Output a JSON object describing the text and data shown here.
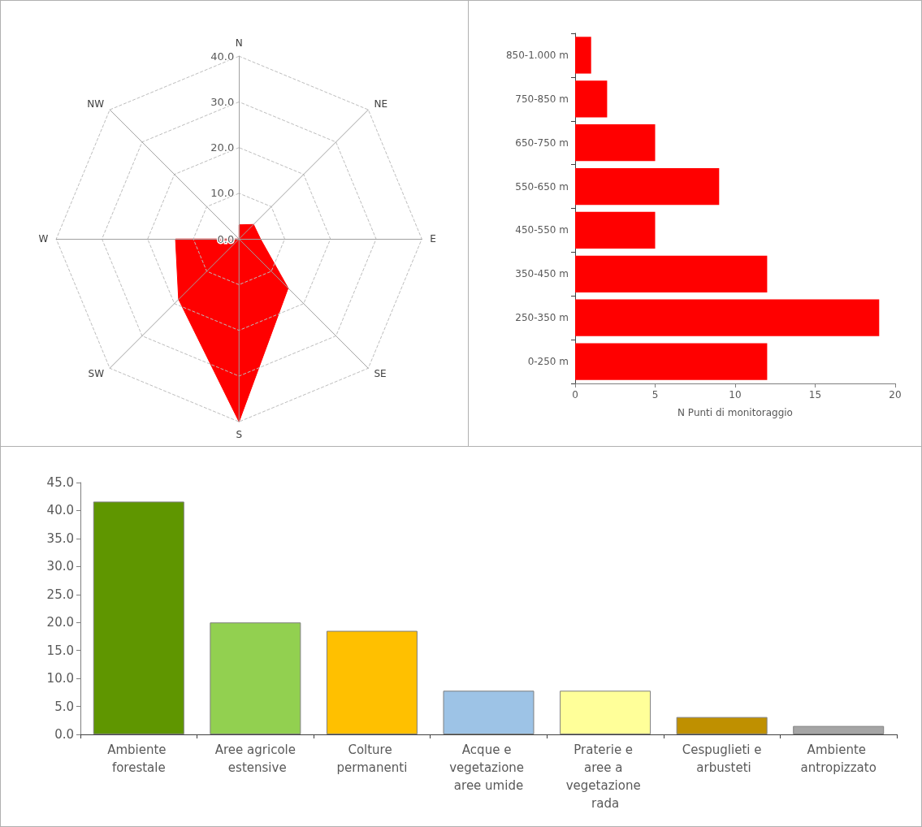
{
  "chart_data": [
    {
      "type": "radar",
      "categories": [
        "N",
        "NE",
        "E",
        "SE",
        "S",
        "SW",
        "W",
        "NW"
      ],
      "series": [
        {
          "color": "#ff0000",
          "values": [
            3.1,
            4.5,
            4.7,
            15.2,
            40.0,
            18.7,
            13.9,
            0
          ]
        }
      ],
      "ylim": [
        0,
        40
      ],
      "yticks": [
        {
          "value": 0,
          "label": "0.0"
        },
        {
          "value": 10,
          "label": "10.0"
        },
        {
          "value": 20,
          "label": "20.0"
        },
        {
          "value": 30,
          "label": "30.0"
        },
        {
          "value": 40,
          "label": "40.0"
        }
      ],
      "grid": true
    },
    {
      "type": "bar",
      "orientation": "horizontal",
      "categories": [
        "850-1.000 m",
        "750-850 m",
        "650-750 m",
        "550-650 m",
        "450-550 m",
        "350-450 m",
        "250-350 m",
        "0-250 m"
      ],
      "values": [
        1,
        2,
        5,
        9,
        5,
        12,
        19,
        12
      ],
      "color": "#ff0000",
      "xlabel": "N Punti di monitoraggio",
      "xlim": [
        0,
        20
      ],
      "xticks": [
        0,
        5,
        10,
        15,
        20
      ]
    },
    {
      "type": "bar",
      "categories": [
        "Ambiente forestale",
        "Aree agricole estensive",
        "Colture permanenti",
        "Acque e vegetazione aree umide",
        "Praterie e aree a vegetazione rada",
        "Cespuglieti e arbusteti",
        "Ambiente antropizzato"
      ],
      "values": [
        41.6,
        20.0,
        18.5,
        7.8,
        7.8,
        3.1,
        1.5
      ],
      "colors": [
        "#5f9600",
        "#92d050",
        "#ffc000",
        "#9dc3e6",
        "#ffff99",
        "#bf9000",
        "#a5a5a5"
      ],
      "ylim": [
        0,
        45
      ],
      "yticks": [
        {
          "value": 0,
          "label": "0.0"
        },
        {
          "value": 5,
          "label": "5.0"
        },
        {
          "value": 10,
          "label": "10.0"
        },
        {
          "value": 15,
          "label": "15.0"
        },
        {
          "value": 20,
          "label": "20.0"
        },
        {
          "value": 25,
          "label": "25.0"
        },
        {
          "value": 30,
          "label": "30.0"
        },
        {
          "value": 35,
          "label": "35.0"
        },
        {
          "value": 40,
          "label": "40.0"
        },
        {
          "value": 45,
          "label": "45.0"
        }
      ]
    }
  ]
}
